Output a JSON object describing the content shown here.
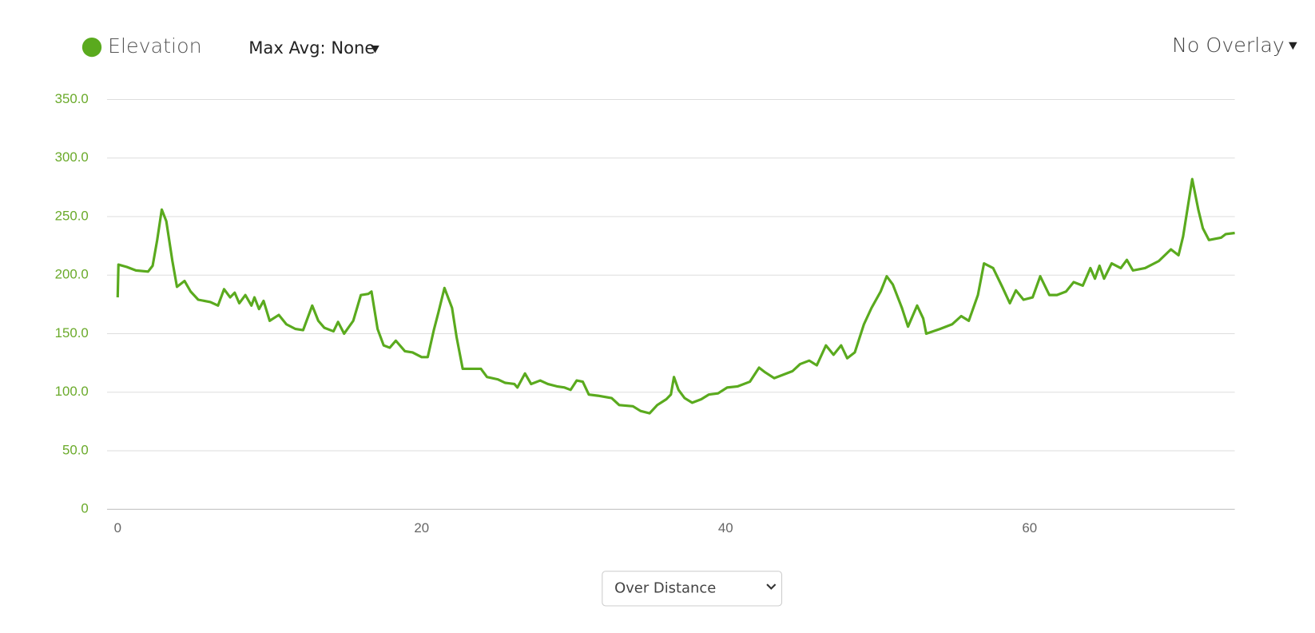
{
  "chart_data": {
    "type": "line",
    "x": [
      0,
      0.05,
      0.6,
      1.2,
      2.0,
      2.3,
      2.6,
      2.9,
      3.2,
      3.6,
      3.9,
      4.4,
      4.8,
      5.3,
      6.1,
      6.6,
      7.0,
      7.4,
      7.7,
      8.0,
      8.4,
      8.8,
      9.0,
      9.3,
      9.6,
      10.0,
      10.6,
      11.1,
      11.7,
      12.2,
      12.8,
      13.2,
      13.6,
      14.2,
      14.5,
      14.9,
      15.5,
      16.0,
      16.5,
      16.7,
      17.1,
      17.5,
      17.9,
      18.3,
      18.9,
      19.4,
      20.0,
      20.4,
      20.8,
      21.1,
      21.5,
      22.0,
      22.3,
      22.7,
      23.3,
      23.9,
      24.3,
      25.0,
      25.5,
      26.1,
      26.3,
      26.8,
      27.2,
      27.8,
      28.3,
      28.9,
      29.4,
      29.8,
      30.2,
      30.6,
      31.0,
      31.6,
      32.5,
      33.0,
      33.9,
      34.4,
      35.0,
      35.5,
      36.1,
      36.4,
      36.6,
      36.9,
      37.3,
      37.8,
      38.4,
      38.9,
      39.5,
      40.1,
      40.8,
      41.6,
      42.2,
      42.6,
      43.2,
      43.8,
      44.4,
      44.9,
      45.5,
      46.0,
      46.6,
      47.1,
      47.6,
      48.0,
      48.5,
      49.1,
      49.6,
      50.2,
      50.6,
      51.0,
      51.6,
      52.0,
      52.6,
      53.0,
      53.2,
      54.1,
      54.9,
      55.5,
      56.0,
      56.6,
      57.0,
      57.6,
      58.2,
      58.7,
      59.1,
      59.6,
      60.2,
      60.7,
      61.3,
      61.8,
      62.4,
      62.9,
      63.5,
      64.0,
      64.3,
      64.6,
      64.9,
      65.4,
      66.0,
      66.4,
      66.8,
      67.6,
      68.5,
      69.3,
      69.8,
      70.1,
      70.7,
      71.1,
      71.4,
      71.8,
      72.6,
      72.9,
      73.5
    ],
    "series": [
      {
        "name": "Elevation",
        "color": "#5aaa1e",
        "values": [
          181,
          209,
          207,
          204,
          203,
          208,
          230,
          256,
          246,
          212,
          190,
          195,
          186,
          179,
          177,
          174,
          188,
          181,
          185,
          176,
          183,
          174,
          181,
          171,
          178,
          161,
          166,
          158,
          154,
          153,
          174,
          161,
          155,
          152,
          160,
          150,
          161,
          183,
          184,
          186,
          154,
          140,
          138,
          144,
          135,
          134,
          130,
          130,
          153,
          168,
          189,
          172,
          147,
          120,
          120,
          120,
          113,
          111,
          108,
          107,
          104,
          116,
          107,
          110,
          107,
          105,
          104,
          102,
          110,
          109,
          98,
          97,
          95,
          89,
          88,
          84,
          82,
          89,
          94,
          98,
          113,
          102,
          95,
          91,
          94,
          98,
          99,
          104,
          105,
          109,
          121,
          117,
          112,
          115,
          118,
          124,
          127,
          123,
          140,
          132,
          140,
          129,
          134,
          158,
          172,
          186,
          199,
          192,
          172,
          156,
          174,
          163,
          150,
          154,
          158,
          165,
          161,
          183,
          210,
          206,
          190,
          176,
          187,
          179,
          181,
          199,
          183,
          183,
          186,
          194,
          191,
          206,
          197,
          208,
          197,
          210,
          206,
          213,
          204,
          206,
          212,
          222,
          217,
          233,
          282,
          256,
          240,
          230,
          232,
          235,
          236
        ]
      }
    ],
    "xlim": [
      -0.7,
      73.5
    ],
    "ylim": [
      0,
      350
    ],
    "xticks": [
      0,
      20,
      40,
      60
    ],
    "yticks": [
      0,
      {
        "value": 50,
        "label": "50.0"
      },
      {
        "value": 100,
        "label": "100.0"
      },
      {
        "value": 150,
        "label": "150.0"
      },
      {
        "value": 200,
        "label": "200.0"
      },
      {
        "value": 250,
        "label": "250.0"
      },
      {
        "value": 300,
        "label": "300.0"
      },
      {
        "value": 350,
        "label": "350.0"
      }
    ],
    "grid": true
  },
  "controls": {
    "max_avg": "Max Avg: None",
    "overlay": "No Overlay",
    "x_mode": "Over Distance"
  }
}
